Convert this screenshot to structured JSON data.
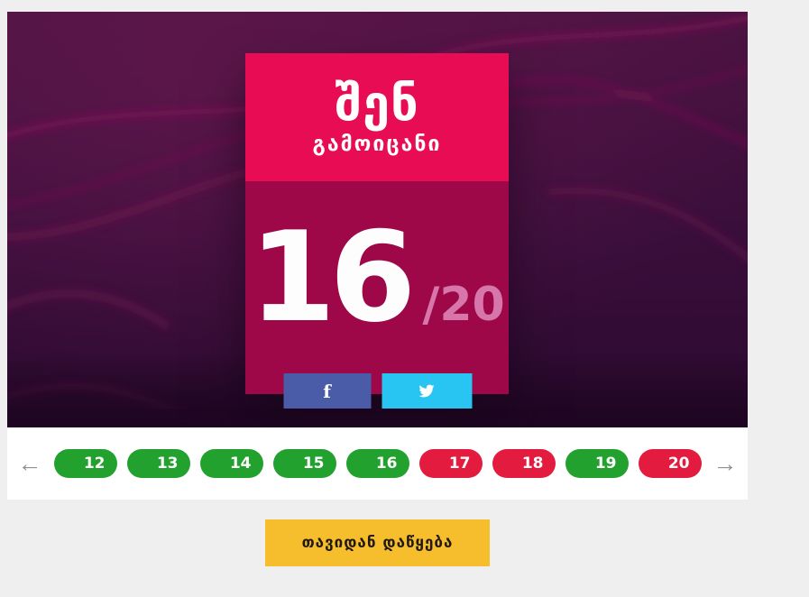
{
  "result_card": {
    "title_line1": "შენ",
    "title_line2": "გამოიცანი",
    "score_value": "16",
    "score_total": "/20"
  },
  "share": {
    "facebook_glyph": "f"
  },
  "questions_nav": {
    "prev_icon": "←",
    "next_icon": "→",
    "items": [
      {
        "label": "12",
        "status": "correct"
      },
      {
        "label": "13",
        "status": "correct"
      },
      {
        "label": "14",
        "status": "correct"
      },
      {
        "label": "15",
        "status": "correct"
      },
      {
        "label": "16",
        "status": "correct"
      },
      {
        "label": "17",
        "status": "incorrect"
      },
      {
        "label": "18",
        "status": "incorrect"
      },
      {
        "label": "19",
        "status": "correct"
      },
      {
        "label": "20",
        "status": "incorrect"
      }
    ]
  },
  "restart_button": {
    "label": "თავიდან დაწყება"
  },
  "colors": {
    "card_top": "#e80c55",
    "card_bottom": "#9e0848",
    "score_total_text": "#d776ab",
    "facebook": "#4a5ca8",
    "twitter": "#28c4f2",
    "correct": "#22a12f",
    "incorrect": "#e31c3f",
    "restart_bg": "#f6be2d",
    "restart_text": "#211a12",
    "page_bg": "#efefef",
    "stage_bg": "#3a0f3b"
  }
}
